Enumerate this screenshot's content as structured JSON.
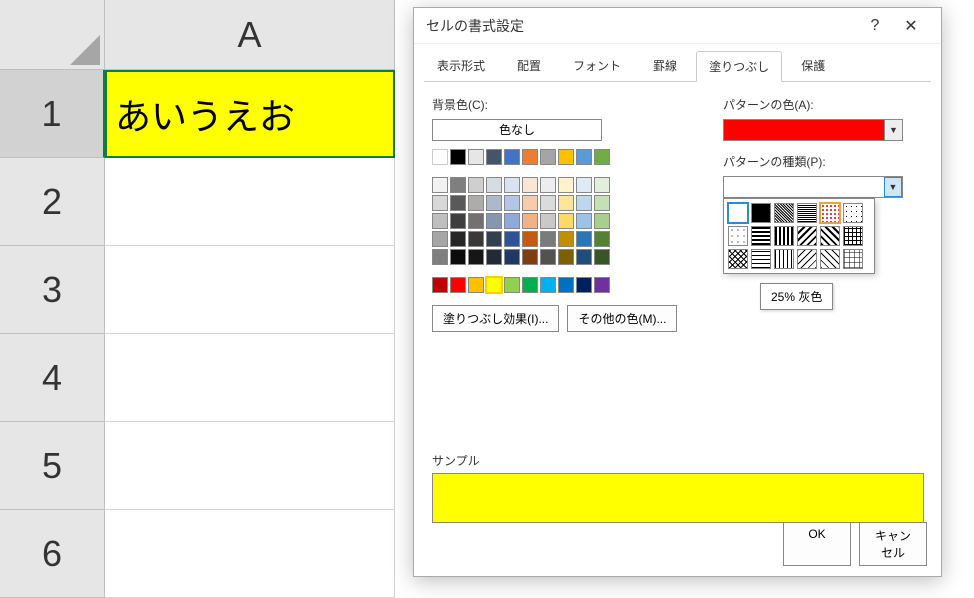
{
  "sheet": {
    "col_header": "A",
    "rows": [
      "1",
      "2",
      "3",
      "4",
      "5",
      "6"
    ],
    "a1_value": "あいうえお",
    "a1_fill": "#ffff00"
  },
  "dialog": {
    "title": "セルの書式設定",
    "tabs": [
      "表示形式",
      "配置",
      "フォント",
      "罫線",
      "塗りつぶし",
      "保護"
    ],
    "active_tab": 4,
    "bg_label": "背景色(C):",
    "no_color": "色なし",
    "fill_effects": "塗りつぶし効果(I)...",
    "more_colors": "その他の色(M)...",
    "pattern_color_label": "パターンの色(A):",
    "pattern_color": "#ff0000",
    "pattern_type_label": "パターンの種類(P):",
    "pattern_tooltip": "25% 灰色",
    "sample_label": "サンプル",
    "sample_fill": "#ffff00",
    "ok": "OK",
    "cancel": "キャンセル"
  },
  "palette": {
    "row1": [
      "#ffffff",
      "#000000",
      "#e7e6e6",
      "#44546a",
      "#4472c4",
      "#ed7d31",
      "#a5a5a5",
      "#ffc000",
      "#5b9bd5",
      "#70ad47"
    ],
    "row2": [
      "#f2f2f2",
      "#7f7f7f",
      "#d0cece",
      "#d6dce4",
      "#d9e2f3",
      "#fbe5d5",
      "#ededed",
      "#fff2cc",
      "#deebf6",
      "#e2efd9"
    ],
    "row3": [
      "#d8d8d8",
      "#595959",
      "#aeabab",
      "#adb9ca",
      "#b4c6e7",
      "#f7cbac",
      "#dbdbdb",
      "#fee599",
      "#bdd7ee",
      "#c5e0b3"
    ],
    "row4": [
      "#bfbfbf",
      "#3f3f3f",
      "#757070",
      "#8496b0",
      "#8eaadb",
      "#f4b183",
      "#c9c9c9",
      "#ffd965",
      "#9cc3e5",
      "#a8d08d"
    ],
    "row5": [
      "#a5a5a5",
      "#262626",
      "#3a3838",
      "#323f4f",
      "#2f5496",
      "#c55a11",
      "#7b7b7b",
      "#bf9000",
      "#2e75b5",
      "#538135"
    ],
    "row6": [
      "#7f7f7f",
      "#0c0c0c",
      "#171616",
      "#222a35",
      "#1f3864",
      "#833c0b",
      "#525252",
      "#7f6000",
      "#1e4e79",
      "#375623"
    ],
    "std": [
      "#c00000",
      "#ff0000",
      "#ffc000",
      "#ffff00",
      "#92d050",
      "#00b050",
      "#00b0f0",
      "#0070c0",
      "#002060",
      "#7030a0"
    ],
    "selected_std": 3
  }
}
